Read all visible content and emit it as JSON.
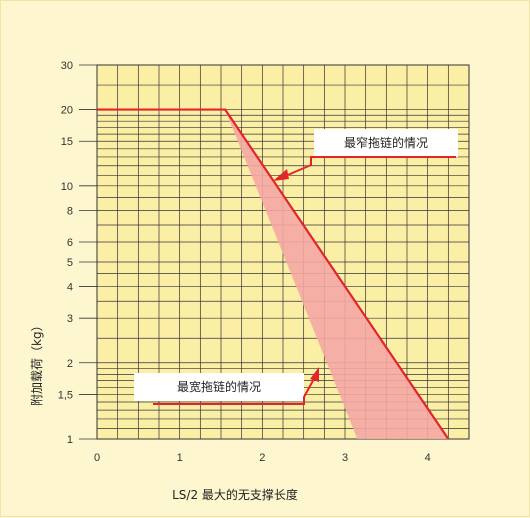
{
  "chart_data": {
    "type": "line",
    "title": "",
    "xlabel": "LS/2 最大的无支撑长度",
    "ylabel": "附加载荷（kg）",
    "x_ticks": [
      0,
      1,
      2,
      3,
      4
    ],
    "y_ticks": [
      "1",
      "1,5",
      "2",
      "3",
      "4",
      "5",
      "6",
      "8",
      "10",
      "15",
      "20",
      "30"
    ],
    "y_tick_values": [
      1,
      1.5,
      2,
      3,
      4,
      5,
      6,
      8,
      10,
      15,
      20,
      30
    ],
    "xlim": [
      0,
      4.5
    ],
    "ylim": [
      1,
      30
    ],
    "grid": true,
    "series": [
      {
        "name": "最窄拖链的情况",
        "color": "#e3242b",
        "x": [
          0,
          1.55,
          4.25
        ],
        "y": [
          20,
          20,
          1
        ]
      },
      {
        "name": "最宽拖链的情况",
        "color": "#f4a0a0",
        "x": [
          1.55,
          3.15
        ],
        "y": [
          20,
          1
        ]
      }
    ],
    "annotations": [
      {
        "text": "最窄拖链的情况"
      },
      {
        "text": "最宽拖链的情况"
      }
    ],
    "colors": {
      "plot_bg": "#fbefa6",
      "grid": "#333333",
      "line": "#e3242b",
      "band": "#f4a7a4",
      "background": "#fdf6cf"
    }
  }
}
